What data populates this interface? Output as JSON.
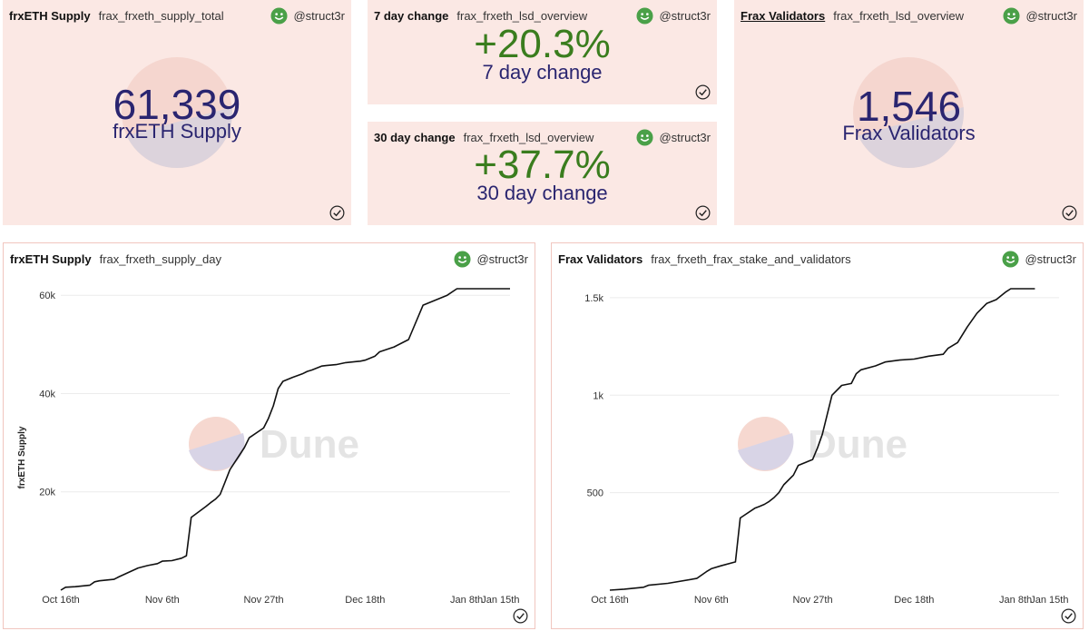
{
  "user": "@struct3r",
  "cards": {
    "supply_total": {
      "title": "frxETH Supply",
      "query": "frax_frxeth_supply_total",
      "value": "61,339",
      "label": "frxETH Supply"
    },
    "change_7d": {
      "title": "7 day change",
      "query": "frax_frxeth_lsd_overview",
      "value": "+20.3%",
      "label": "7 day change"
    },
    "change_30d": {
      "title": "30 day change",
      "query": "frax_frxeth_lsd_overview",
      "value": "+37.7%",
      "label": "30 day change"
    },
    "validators_total": {
      "title": "Frax Validators",
      "query": "frax_frxeth_lsd_overview",
      "value": "1,546",
      "label": "Frax Validators"
    },
    "supply_chart": {
      "title": "frxETH Supply",
      "query": "frax_frxeth_supply_day",
      "watermark": "Dune"
    },
    "validators_chart": {
      "title": "Frax Validators",
      "query": "frax_frxeth_frax_stake_and_validators",
      "watermark": "Dune"
    }
  },
  "colors": {
    "card_bg": "#fbe8e4",
    "number_navy": "#2a2570",
    "number_green": "#3a7d1e",
    "line": "#111111"
  },
  "chart_data": [
    {
      "type": "line",
      "title": "frxETH Supply",
      "xlabel": "",
      "ylabel": "frxETH Supply",
      "ylim": [
        0,
        61339
      ],
      "yticks": [
        20000,
        40000,
        60000
      ],
      "ytick_labels": [
        "20k",
        "40k",
        "60k"
      ],
      "xticks": [
        0,
        21,
        42,
        63,
        84,
        91
      ],
      "xtick_labels": [
        "Oct 16th",
        "Nov 6th",
        "Nov 27th",
        "Dec 18th",
        "Jan 8th",
        "Jan 15th"
      ],
      "x_unit": "days since Oct 16th",
      "x": [
        0,
        1,
        3,
        6,
        7,
        8,
        11,
        12,
        16,
        18,
        20,
        21,
        23,
        25,
        26,
        27,
        30,
        31,
        32,
        33,
        34,
        35,
        36,
        38,
        39,
        42,
        43,
        44,
        45,
        46,
        48,
        50,
        51,
        52,
        53,
        54,
        55,
        56,
        57,
        58,
        59,
        61,
        62,
        63,
        65,
        66,
        69,
        72,
        75,
        80,
        82,
        83,
        85,
        87,
        88,
        89,
        90,
        91,
        92,
        93
      ],
      "y": [
        0,
        600,
        700,
        1000,
        1700,
        1900,
        2200,
        2700,
        4500,
        5000,
        5400,
        5900,
        6000,
        6500,
        7000,
        14800,
        17000,
        17800,
        18500,
        19500,
        22000,
        24500,
        26000,
        29000,
        31000,
        33000,
        35000,
        37500,
        41000,
        42500,
        43300,
        44000,
        44500,
        44800,
        45200,
        45600,
        45700,
        45800,
        45900,
        46100,
        46300,
        46500,
        46600,
        46800,
        47600,
        48500,
        49500,
        51000,
        58000,
        60000,
        61339,
        61339,
        61339,
        61339,
        61339,
        61339,
        61339,
        61339,
        61339,
        61339
      ]
    },
    {
      "type": "line",
      "title": "Frax Validators",
      "xlabel": "",
      "ylabel": "",
      "ylim": [
        0,
        1546
      ],
      "yticks": [
        500,
        1000,
        1500
      ],
      "ytick_labels": [
        "500",
        "1k",
        "1.5k"
      ],
      "xticks": [
        0,
        21,
        42,
        63,
        84,
        91
      ],
      "xtick_labels": [
        "Oct 16th",
        "Nov 6th",
        "Nov 27th",
        "Dec 18th",
        "Jan 8th",
        "Jan 15th"
      ],
      "x_unit": "days since Oct 16th",
      "x": [
        0,
        3,
        7,
        8,
        12,
        18,
        20,
        21,
        23,
        26,
        27,
        30,
        31,
        32,
        33,
        34,
        35,
        36,
        38,
        39,
        42,
        43,
        44,
        45,
        46,
        48,
        50,
        51,
        52,
        55,
        57,
        60,
        63,
        66,
        69,
        70,
        72,
        74,
        76,
        78,
        80,
        82,
        83,
        84,
        85,
        87,
        88
      ],
      "y": [
        0,
        5,
        15,
        25,
        35,
        60,
        95,
        110,
        125,
        145,
        370,
        420,
        430,
        440,
        455,
        475,
        500,
        540,
        590,
        640,
        670,
        730,
        800,
        900,
        1000,
        1050,
        1060,
        1110,
        1130,
        1150,
        1170,
        1180,
        1185,
        1200,
        1210,
        1240,
        1270,
        1350,
        1420,
        1470,
        1490,
        1530,
        1546,
        1546,
        1546,
        1546,
        1546
      ]
    }
  ]
}
